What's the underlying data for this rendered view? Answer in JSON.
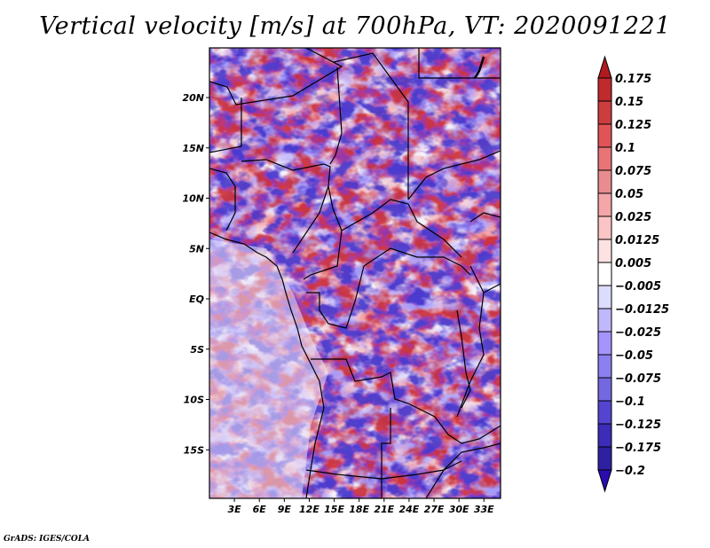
{
  "title": "Vertical velocity [m/s] at 700hPa, VT: 2020091221",
  "footer": "GrADS: IGES/COLA",
  "chart_data": {
    "type": "heatmap",
    "title": "Vertical velocity [m/s] at 700hPa, VT: 2020091221",
    "variable": "Vertical velocity",
    "units": "m/s",
    "level": "700hPa",
    "valid_time": "2020091221",
    "xlabel": "",
    "ylabel": "",
    "lon_range": [
      0,
      35
    ],
    "lat_range": [
      -20,
      25
    ],
    "x_ticks": [
      {
        "value": 3,
        "label": "3E"
      },
      {
        "value": 6,
        "label": "6E"
      },
      {
        "value": 9,
        "label": "9E"
      },
      {
        "value": 12,
        "label": "12E"
      },
      {
        "value": 15,
        "label": "15E"
      },
      {
        "value": 18,
        "label": "18E"
      },
      {
        "value": 21,
        "label": "21E"
      },
      {
        "value": 24,
        "label": "24E"
      },
      {
        "value": 27,
        "label": "27E"
      },
      {
        "value": 30,
        "label": "30E"
      },
      {
        "value": 33,
        "label": "33E"
      }
    ],
    "y_ticks": [
      {
        "value": 20,
        "label": "20N"
      },
      {
        "value": 15,
        "label": "15N"
      },
      {
        "value": 10,
        "label": "10N"
      },
      {
        "value": 5,
        "label": "5N"
      },
      {
        "value": 0,
        "label": "EQ"
      },
      {
        "value": -5,
        "label": "5S"
      },
      {
        "value": -10,
        "label": "10S"
      },
      {
        "value": -15,
        "label": "15S"
      }
    ],
    "grid": false,
    "colorbar": {
      "placement": "right",
      "extend": "both",
      "levels": [
        {
          "label": "0.175",
          "value": 0.175
        },
        {
          "label": "0.15",
          "value": 0.15
        },
        {
          "label": "0.125",
          "value": 0.125
        },
        {
          "label": "0.1",
          "value": 0.1
        },
        {
          "label": "0.075",
          "value": 0.075
        },
        {
          "label": "0.05",
          "value": 0.05
        },
        {
          "label": "0.025",
          "value": 0.025
        },
        {
          "label": "0.0125",
          "value": 0.0125
        },
        {
          "label": "0.005",
          "value": 0.005
        },
        {
          "label": "−0.005",
          "value": -0.005
        },
        {
          "label": "−0.0125",
          "value": -0.0125
        },
        {
          "label": "−0.025",
          "value": -0.025
        },
        {
          "label": "−0.05",
          "value": -0.05
        },
        {
          "label": "−0.075",
          "value": -0.075
        },
        {
          "label": "−0.1",
          "value": -0.1
        },
        {
          "label": "−0.125",
          "value": -0.125
        },
        {
          "label": "−0.175",
          "value": -0.175
        },
        {
          "label": "−0.2",
          "value": -0.2
        }
      ],
      "colors": [
        "#b01a1f",
        "#bf2a2e",
        "#cc3d40",
        "#e05458",
        "#e87478",
        "#e88c90",
        "#f4a6a8",
        "#fbc4c5",
        "#fde2e3",
        "#ffffff",
        "#dcdcfc",
        "#c0b8fc",
        "#a494fc",
        "#8c80f0",
        "#7468e0",
        "#5444d0",
        "#3c2cb8",
        "#2e20a0",
        "#2a0cb0"
      ]
    }
  }
}
